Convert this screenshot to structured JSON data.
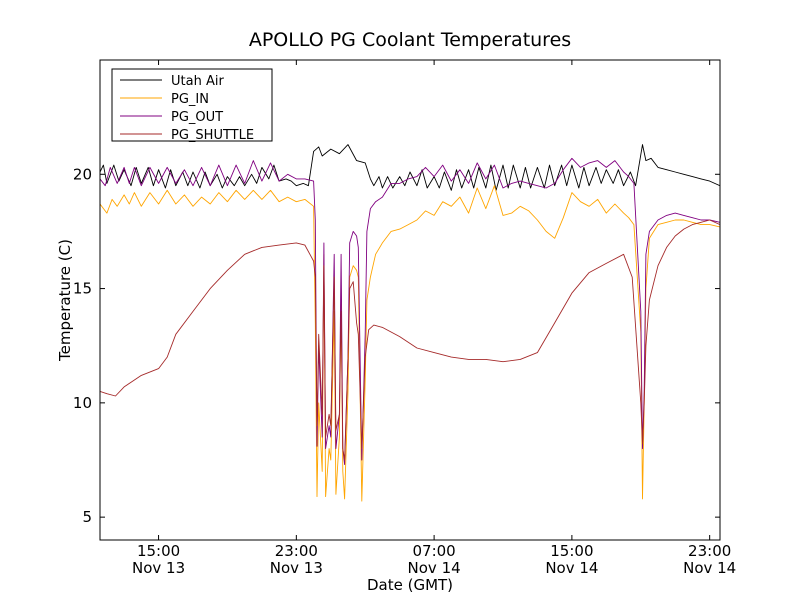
{
  "chart_data": {
    "type": "line",
    "title": "APOLLO PG Coolant Temperatures",
    "xlabel": "Date (GMT)",
    "ylabel": "Temperature (C)",
    "xlim": [
      11.6,
      47.6
    ],
    "ylim": [
      4,
      25
    ],
    "x_unit": "hours since Nov 13 00:00 GMT",
    "grid": false,
    "legend_position": "top-left",
    "yticks": [
      {
        "value": 5,
        "label": "5"
      },
      {
        "value": 10,
        "label": "10"
      },
      {
        "value": 15,
        "label": "15"
      },
      {
        "value": 20,
        "label": "20"
      }
    ],
    "xticks": [
      {
        "value": 15,
        "label": "15:00",
        "sublabel": "Nov 13"
      },
      {
        "value": 23,
        "label": "23:00",
        "sublabel": "Nov 13"
      },
      {
        "value": 31,
        "label": "07:00",
        "sublabel": "Nov 14"
      },
      {
        "value": 39,
        "label": "15:00",
        "sublabel": "Nov 14"
      },
      {
        "value": 47,
        "label": "23:00",
        "sublabel": "Nov 14"
      }
    ],
    "series": [
      {
        "name": "Utah Air",
        "color": "#000000",
        "x": [
          11.6,
          11.8,
          12.0,
          12.4,
          12.7,
          13.0,
          13.4,
          13.7,
          14.0,
          14.4,
          14.7,
          15.0,
          15.4,
          15.7,
          16.0,
          16.4,
          16.7,
          17.0,
          17.4,
          17.7,
          18.0,
          18.4,
          18.7,
          19.0,
          19.4,
          19.7,
          20.0,
          20.4,
          20.7,
          21.0,
          21.4,
          21.7,
          22.0,
          22.4,
          22.7,
          23.0,
          23.4,
          23.7,
          24.0,
          24.3,
          24.5,
          25.0,
          25.5,
          26.0,
          26.5,
          27.0,
          27.3,
          27.5,
          27.8,
          28.0,
          28.3,
          28.6,
          29.0,
          29.3,
          29.6,
          30.0,
          30.3,
          30.6,
          31.0,
          31.3,
          31.6,
          32.0,
          32.3,
          32.6,
          33.0,
          33.3,
          33.6,
          34.0,
          34.3,
          34.6,
          35.0,
          35.3,
          35.6,
          36.0,
          36.3,
          36.6,
          37.0,
          37.4,
          37.7,
          38.0,
          38.4,
          38.7,
          39.0,
          39.4,
          39.7,
          40.0,
          40.4,
          40.7,
          41.0,
          41.4,
          41.7,
          42.0,
          42.4,
          42.7,
          43.1,
          43.3,
          43.6,
          44.0,
          44.5,
          45.0,
          45.5,
          46.0,
          46.5,
          47.0,
          47.6
        ],
        "y": [
          20.1,
          20.4,
          19.6,
          20.4,
          19.7,
          20.2,
          19.5,
          20.3,
          19.6,
          20.3,
          19.5,
          20.2,
          19.4,
          20.2,
          19.5,
          20.1,
          19.5,
          20.1,
          19.4,
          20.1,
          19.5,
          20.0,
          19.4,
          19.9,
          19.5,
          19.9,
          19.5,
          20.0,
          19.6,
          20.3,
          19.8,
          20.4,
          19.7,
          19.8,
          19.7,
          19.5,
          19.6,
          19.5,
          21.0,
          21.2,
          20.8,
          21.1,
          20.9,
          21.3,
          20.6,
          20.5,
          19.8,
          19.5,
          19.9,
          19.4,
          19.9,
          19.4,
          19.9,
          19.5,
          20.1,
          19.5,
          20.2,
          19.4,
          19.9,
          19.4,
          20.1,
          19.3,
          20.2,
          19.4,
          20.2,
          19.4,
          20.3,
          19.4,
          20.4,
          19.3,
          20.4,
          19.4,
          20.4,
          19.4,
          20.3,
          19.4,
          20.3,
          19.4,
          20.4,
          19.5,
          20.4,
          19.5,
          20.4,
          19.4,
          20.3,
          19.5,
          20.3,
          19.6,
          20.2,
          19.6,
          20.2,
          19.5,
          20.1,
          19.5,
          21.3,
          20.6,
          20.7,
          20.3,
          20.2,
          20.1,
          20.0,
          19.9,
          19.8,
          19.7,
          19.5
        ]
      },
      {
        "name": "PG_IN",
        "color": "#ffa500",
        "x": [
          11.6,
          12.0,
          12.3,
          12.6,
          13.0,
          13.3,
          13.6,
          14.0,
          14.5,
          15.0,
          15.5,
          16.0,
          16.5,
          17.0,
          17.5,
          18.0,
          18.5,
          19.0,
          19.5,
          20.0,
          20.5,
          21.0,
          21.5,
          22.0,
          22.5,
          23.0,
          23.5,
          24.0,
          24.1,
          24.2,
          24.3,
          24.5,
          24.6,
          24.7,
          24.9,
          25.0,
          25.2,
          25.3,
          25.5,
          25.6,
          25.7,
          25.8,
          26.0,
          26.1,
          26.3,
          26.5,
          26.6,
          26.8,
          27.0,
          27.1,
          27.3,
          27.6,
          28.0,
          28.5,
          29.0,
          29.5,
          30.0,
          30.5,
          31.0,
          31.5,
          32.0,
          32.5,
          33.0,
          33.5,
          34.0,
          34.5,
          35.0,
          35.5,
          36.0,
          36.5,
          37.0,
          37.5,
          38.0,
          38.5,
          39.0,
          39.5,
          40.0,
          40.5,
          41.0,
          41.5,
          42.0,
          42.3,
          42.6,
          43.0,
          43.1,
          43.2,
          43.3,
          43.5,
          44.0,
          44.5,
          45.0,
          45.5,
          46.0,
          46.5,
          47.0,
          47.6
        ],
        "y": [
          18.7,
          18.3,
          18.9,
          18.6,
          19.1,
          18.7,
          19.2,
          18.6,
          19.2,
          18.7,
          19.3,
          18.7,
          19.1,
          18.6,
          19.0,
          18.7,
          19.2,
          18.8,
          19.3,
          18.9,
          19.3,
          18.9,
          19.3,
          18.8,
          19.0,
          18.8,
          18.9,
          18.6,
          13.5,
          5.9,
          10.0,
          7.0,
          16.5,
          5.9,
          8.0,
          7.5,
          14.0,
          6.0,
          8.5,
          15.0,
          7.0,
          5.8,
          10.5,
          15.5,
          16.0,
          15.8,
          15.5,
          5.7,
          11.0,
          14.5,
          15.5,
          16.5,
          17.0,
          17.5,
          17.6,
          17.8,
          18.0,
          18.4,
          18.2,
          18.8,
          18.6,
          19.0,
          18.3,
          19.4,
          18.5,
          19.5,
          18.2,
          18.3,
          18.6,
          18.4,
          18.0,
          17.5,
          17.2,
          18.1,
          19.2,
          18.8,
          18.6,
          18.9,
          18.3,
          18.7,
          18.3,
          18.1,
          17.8,
          13.1,
          5.8,
          10.0,
          15.0,
          17.2,
          17.8,
          17.9,
          18.0,
          18.0,
          17.9,
          17.8,
          17.8,
          17.7
        ]
      },
      {
        "name": "PG_OUT",
        "color": "#800080",
        "x": [
          11.6,
          11.9,
          12.2,
          12.6,
          13.0,
          13.3,
          13.6,
          14.0,
          14.5,
          15.0,
          15.5,
          16.0,
          16.5,
          17.0,
          17.5,
          18.0,
          18.5,
          19.0,
          19.5,
          20.0,
          20.5,
          21.0,
          21.5,
          22.0,
          22.5,
          23.0,
          23.5,
          24.0,
          24.1,
          24.2,
          24.3,
          24.5,
          24.6,
          24.7,
          24.9,
          25.0,
          25.2,
          25.3,
          25.5,
          25.6,
          25.7,
          25.8,
          26.0,
          26.1,
          26.3,
          26.5,
          26.6,
          26.8,
          27.0,
          27.1,
          27.3,
          27.6,
          28.0,
          28.5,
          29.0,
          29.5,
          30.0,
          30.5,
          31.0,
          31.5,
          32.0,
          32.5,
          33.0,
          33.5,
          34.0,
          34.5,
          35.0,
          35.5,
          36.0,
          36.5,
          37.0,
          37.5,
          38.0,
          38.5,
          39.0,
          39.5,
          40.0,
          40.5,
          41.0,
          41.5,
          42.0,
          42.3,
          42.6,
          43.0,
          43.1,
          43.2,
          43.3,
          43.5,
          44.0,
          44.5,
          45.0,
          45.5,
          46.0,
          46.5,
          47.0,
          47.6
        ],
        "y": [
          19.8,
          19.5,
          20.3,
          19.6,
          20.3,
          19.6,
          20.3,
          19.5,
          20.3,
          19.6,
          20.3,
          19.6,
          20.2,
          19.5,
          20.3,
          19.5,
          20.4,
          19.5,
          20.4,
          19.6,
          20.6,
          19.7,
          20.5,
          19.7,
          20.0,
          19.8,
          19.8,
          19.7,
          18.0,
          8.1,
          12.5,
          8.5,
          17.0,
          8.0,
          9.0,
          8.5,
          16.5,
          8.0,
          9.5,
          16.5,
          8.0,
          7.3,
          12.0,
          17.0,
          17.5,
          17.3,
          16.8,
          7.5,
          13.0,
          17.5,
          18.5,
          18.8,
          19.0,
          19.6,
          19.6,
          19.8,
          19.9,
          20.3,
          19.9,
          20.4,
          19.7,
          20.2,
          19.6,
          20.5,
          19.8,
          20.4,
          19.4,
          19.6,
          19.7,
          19.6,
          19.5,
          19.4,
          19.6,
          20.2,
          20.7,
          20.3,
          20.5,
          20.6,
          20.3,
          20.6,
          20.1,
          19.9,
          19.6,
          14.0,
          8.0,
          10.5,
          16.5,
          17.5,
          18.0,
          18.2,
          18.3,
          18.2,
          18.1,
          18.0,
          18.0,
          17.9
        ]
      },
      {
        "name": "PG_SHUTTLE",
        "color": "#a52a2a",
        "x": [
          11.6,
          12.0,
          12.5,
          13.0,
          14.0,
          15.0,
          15.5,
          16.0,
          17.0,
          18.0,
          19.0,
          20.0,
          21.0,
          22.0,
          23.0,
          23.5,
          24.0,
          24.1,
          24.2,
          24.3,
          24.5,
          24.6,
          24.7,
          24.9,
          25.0,
          25.2,
          25.3,
          25.5,
          25.6,
          25.7,
          25.8,
          26.0,
          26.1,
          26.3,
          26.5,
          26.6,
          26.8,
          27.0,
          27.2,
          27.5,
          28.0,
          29.0,
          30.0,
          31.0,
          32.0,
          33.0,
          34.0,
          35.0,
          36.0,
          37.0,
          38.0,
          39.0,
          40.0,
          41.0,
          42.0,
          42.5,
          43.0,
          43.1,
          43.2,
          43.3,
          43.5,
          44.0,
          44.5,
          45.0,
          45.5,
          46.0,
          46.5,
          47.0,
          47.6
        ],
        "y": [
          10.5,
          10.4,
          10.3,
          10.7,
          11.2,
          11.5,
          12.0,
          13.0,
          14.0,
          15.0,
          15.8,
          16.5,
          16.8,
          16.9,
          17.0,
          16.9,
          16.2,
          15.5,
          9.0,
          13.0,
          9.5,
          16.0,
          8.5,
          9.5,
          9.0,
          15.5,
          8.8,
          9.5,
          14.0,
          8.0,
          7.5,
          12.0,
          15.0,
          15.3,
          13.5,
          13.0,
          8.0,
          12.0,
          13.2,
          13.4,
          13.3,
          12.9,
          12.4,
          12.2,
          12.0,
          11.9,
          11.9,
          11.8,
          11.9,
          12.2,
          13.5,
          14.8,
          15.7,
          16.1,
          16.5,
          15.5,
          10.0,
          8.2,
          10.0,
          12.5,
          14.5,
          16.0,
          16.8,
          17.3,
          17.6,
          17.8,
          17.9,
          18.0,
          17.8
        ]
      }
    ]
  }
}
